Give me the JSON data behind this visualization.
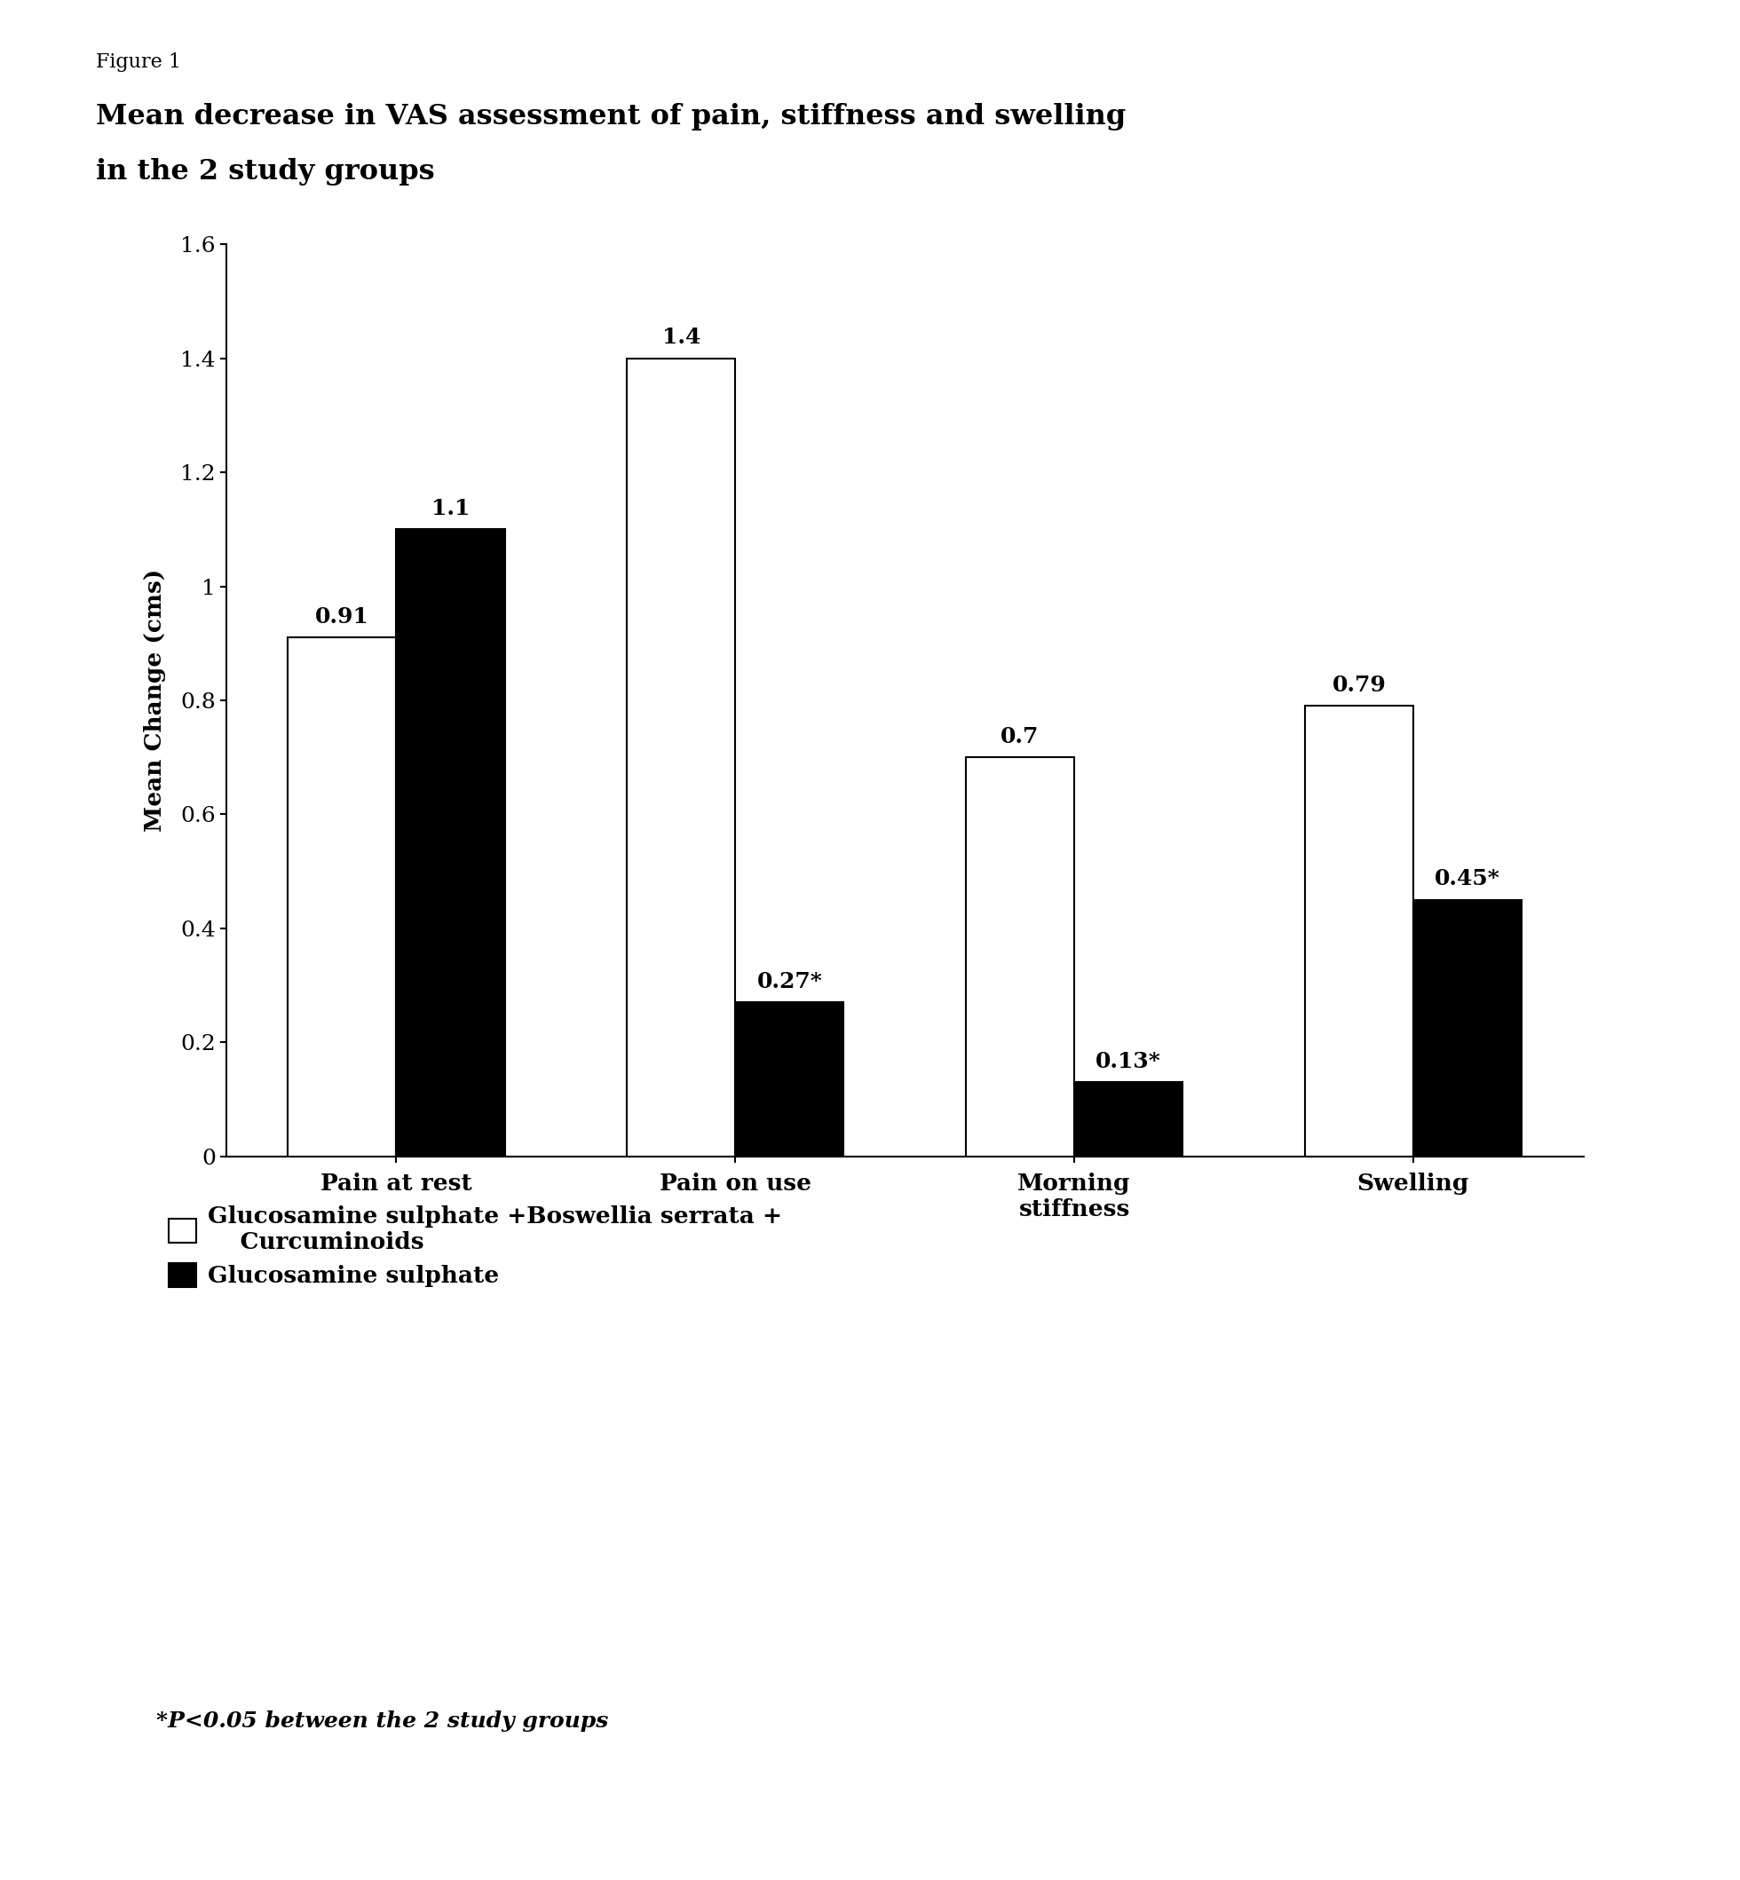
{
  "figure_label": "Figure 1",
  "title_line1": "Mean decrease in VAS assessment of pain, stiffness and swelling",
  "title_line2": "in the 2 study groups",
  "categories": [
    "Pain at rest",
    "Pain on use",
    "Morning\nstiffness",
    "Swelling"
  ],
  "group1_values": [
    0.91,
    1.4,
    0.7,
    0.79
  ],
  "group2_values": [
    1.1,
    0.27,
    0.13,
    0.45
  ],
  "group1_labels": [
    "0.91",
    "1.4",
    "0.7",
    "0.79"
  ],
  "group2_labels": [
    "1.1",
    "0.27*",
    "0.13*",
    "0.45*"
  ],
  "group1_color": "#ffffff",
  "group2_color": "#000000",
  "bar_edgecolor": "#000000",
  "ylabel": "Mean Change (cms)",
  "ylim": [
    0,
    1.6
  ],
  "yticks": [
    0,
    0.2,
    0.4,
    0.6,
    0.8,
    1.0,
    1.2,
    1.4,
    1.6
  ],
  "ytick_labels": [
    "0",
    "0.2",
    "0.4",
    "0.6",
    "0.8",
    "1",
    "1.2",
    "1.4",
    "1.6"
  ],
  "legend_label1": "Glucosamine sulphate +Boswellia serrata +\n    Curcuminoids",
  "legend_label2": "Glucosamine sulphate",
  "footnote": "*P<0.05 between the 2 study groups",
  "background_color": "#ffffff",
  "bar_width": 0.32,
  "figure_label_fontsize": 16,
  "title_fontsize": 23,
  "axis_label_fontsize": 19,
  "tick_fontsize": 18,
  "bar_label_fontsize": 18,
  "legend_fontsize": 19,
  "footnote_fontsize": 18
}
